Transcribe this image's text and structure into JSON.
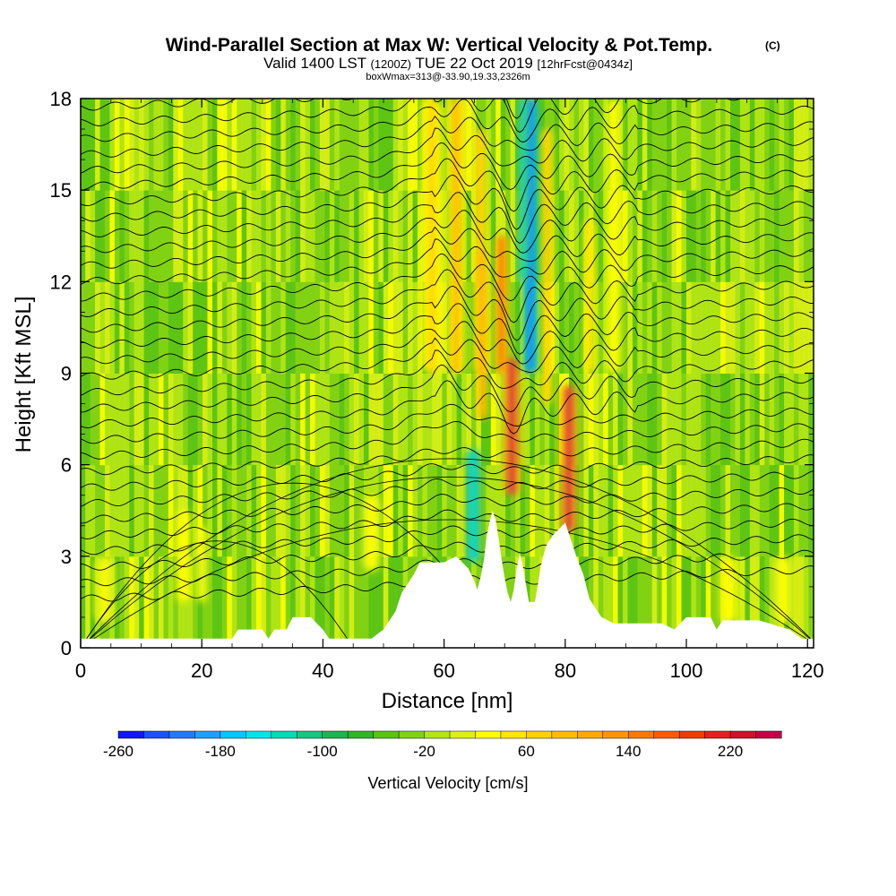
{
  "chart_data": {
    "type": "heatmap",
    "title": "Wind-Parallel Section at Max W: Vertical Velocity & Pot.Temp.",
    "title_mark": "(C)",
    "subtitle_parts": [
      "Valid 1400 LST",
      "(1200Z)",
      "TUE 22 Oct 2019",
      "[12hrFcst@0434z]"
    ],
    "subtitle2": "boxWmax=313@-33.90,19.33,2326m",
    "xlabel": "Distance [nm]",
    "ylabel": "Height [Kft MSL]",
    "xlim": [
      0,
      121
    ],
    "ylim": [
      0,
      18
    ],
    "x_ticks": [
      0,
      20,
      40,
      60,
      80,
      100,
      120
    ],
    "y_ticks": [
      0,
      3,
      6,
      9,
      12,
      15,
      18
    ],
    "colorbar": {
      "label": "Vertical Velocity [cm/s]",
      "tick_values": [
        -260,
        -180,
        -100,
        -20,
        60,
        140,
        220
      ],
      "tick_labels": [
        "-260",
        "-180",
        "-100",
        "-20",
        "60",
        "140",
        "220"
      ],
      "min": -260,
      "max": 260,
      "colors": [
        "#1414ff",
        "#1e50ff",
        "#2878ff",
        "#1ea0ff",
        "#00c8ff",
        "#00e6e6",
        "#00dcb4",
        "#14c882",
        "#1eb450",
        "#32b428",
        "#5ac314",
        "#82d214",
        "#b4e614",
        "#dcf014",
        "#ffff00",
        "#ffe600",
        "#ffd200",
        "#ffbe00",
        "#ffaa00",
        "#ff9600",
        "#ff7800",
        "#ff5a00",
        "#f03c00",
        "#e61e1e",
        "#d20f2d",
        "#c80046"
      ]
    },
    "terrain": {
      "x": [
        0,
        25,
        26,
        30,
        31,
        32,
        34,
        35,
        38,
        40,
        41,
        48,
        50,
        52,
        53,
        55,
        56,
        58,
        60,
        62,
        64,
        65,
        65.5,
        66,
        66.6,
        67,
        67.5,
        68,
        68.5,
        69,
        69.5,
        70,
        70.5,
        71,
        71.5,
        72,
        72.5,
        73,
        73.5,
        74,
        74.5,
        75,
        75.5,
        76,
        76.5,
        77,
        78,
        79,
        80,
        81,
        82,
        83,
        84,
        85,
        86,
        88,
        92,
        96,
        98,
        100,
        102,
        104,
        105,
        106,
        107,
        112,
        117,
        119,
        121
      ],
      "height_kft": [
        0.3,
        0.3,
        0.6,
        0.6,
        0.3,
        0.6,
        0.6,
        1,
        1,
        0.6,
        0.3,
        0.3,
        0.6,
        1.2,
        1.8,
        2.4,
        2.8,
        2.8,
        2.8,
        3,
        2.6,
        2.2,
        1.9,
        2.3,
        2.9,
        3.6,
        4.1,
        4.5,
        4.2,
        3.6,
        2.9,
        2.3,
        1.8,
        1.5,
        1.9,
        2.6,
        3.1,
        2.7,
        2.1,
        1.5,
        1.5,
        1.5,
        2.1,
        2.7,
        3.1,
        3.4,
        3.7,
        3.9,
        4.1,
        3.5,
        2.9,
        2.4,
        1.6,
        1.3,
        1.0,
        0.8,
        0.8,
        0.8,
        0.6,
        1.0,
        1.0,
        1.0,
        0.6,
        0.9,
        0.9,
        0.9,
        0.6,
        0.3,
        0.3
      ]
    },
    "updraft_max": [
      {
        "x": 71.2,
        "z0": 5.0,
        "z1": 9.5,
        "w": 240
      },
      {
        "x": 80.6,
        "z0": 3.8,
        "z1": 8.6,
        "w": 240
      },
      {
        "x": 69.5,
        "z0": 9.0,
        "z1": 13.5,
        "w": 180
      },
      {
        "x": 62.0,
        "z0": 9.0,
        "z1": 18.0,
        "w": 100
      }
    ],
    "downdraft_min": [
      {
        "x": 74.3,
        "z0": 9.0,
        "z1": 18.0,
        "w": -240
      },
      {
        "x": 64.8,
        "z0": 2.8,
        "z1": 6.5,
        "w": -160
      }
    ],
    "contours": "potential temperature isentropes"
  }
}
